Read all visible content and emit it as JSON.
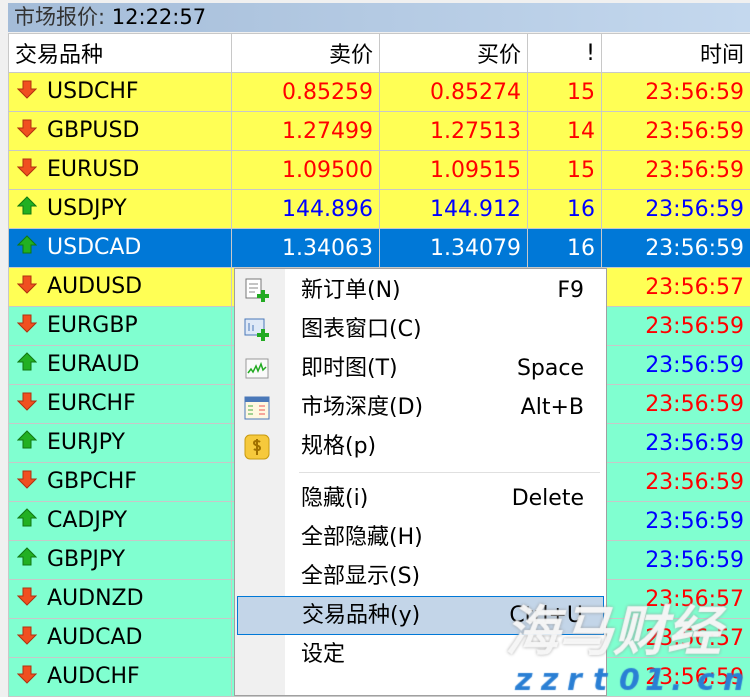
{
  "window": {
    "title_label": "市场报价:",
    "clock": "12:22:57"
  },
  "columns": [
    "交易品种",
    "卖价",
    "买价",
    "!",
    "时间"
  ],
  "colors": {
    "up": "#0000ff",
    "down": "#ff0000",
    "row_yellow": "#ffff55",
    "row_aqua": "#80ffd0",
    "selected": "#0078d7"
  },
  "rows": [
    {
      "symbol": "USDCHF",
      "bid": "0.85259",
      "ask": "0.85274",
      "spread": "15",
      "time": "23:56:59",
      "dir": "down",
      "bg": "yellow"
    },
    {
      "symbol": "GBPUSD",
      "bid": "1.27499",
      "ask": "1.27513",
      "spread": "14",
      "time": "23:56:59",
      "dir": "down",
      "bg": "yellow"
    },
    {
      "symbol": "EURUSD",
      "bid": "1.09500",
      "ask": "1.09515",
      "spread": "15",
      "time": "23:56:59",
      "dir": "down",
      "bg": "yellow"
    },
    {
      "symbol": "USDJPY",
      "bid": "144.896",
      "ask": "144.912",
      "spread": "16",
      "time": "23:56:59",
      "dir": "up",
      "bg": "yellow"
    },
    {
      "symbol": "USDCAD",
      "bid": "1.34063",
      "ask": "1.34079",
      "spread": "16",
      "time": "23:56:59",
      "dir": "up",
      "bg": "sel"
    },
    {
      "symbol": "AUDUSD",
      "time": "23:56:57",
      "dir": "down",
      "bg": "yellow"
    },
    {
      "symbol": "EURGBP",
      "time": "23:56:59",
      "dir": "down",
      "bg": "aqua"
    },
    {
      "symbol": "EURAUD",
      "time": "23:56:59",
      "dir": "up",
      "bg": "aqua"
    },
    {
      "symbol": "EURCHF",
      "time": "23:56:59",
      "dir": "down",
      "bg": "aqua"
    },
    {
      "symbol": "EURJPY",
      "time": "23:56:59",
      "dir": "up",
      "bg": "aqua"
    },
    {
      "symbol": "GBPCHF",
      "time": "23:56:59",
      "dir": "down",
      "bg": "aqua"
    },
    {
      "symbol": "CADJPY",
      "time": "23:56:59",
      "dir": "up",
      "bg": "aqua"
    },
    {
      "symbol": "GBPJPY",
      "time": "23:56:59",
      "dir": "up",
      "bg": "aqua"
    },
    {
      "symbol": "AUDNZD",
      "time": "23:56:57",
      "dir": "down",
      "bg": "aqua"
    },
    {
      "symbol": "AUDCAD",
      "time": "23:56:57",
      "dir": "down",
      "bg": "aqua"
    },
    {
      "symbol": "AUDCHF",
      "time": "23:56:59",
      "dir": "down",
      "bg": "aqua"
    }
  ],
  "context_menu": [
    {
      "label": "新订单(N)",
      "shortcut": "F9",
      "icon": "new-order-icon"
    },
    {
      "label": "图表窗口(C)",
      "shortcut": "",
      "icon": "chart-window-icon"
    },
    {
      "label": "即时图(T)",
      "shortcut": "Space",
      "icon": "tick-chart-icon"
    },
    {
      "label": "市场深度(D)",
      "shortcut": "Alt+B",
      "icon": "market-depth-icon"
    },
    {
      "label": "规格(p)",
      "shortcut": "",
      "icon": "dollar-icon"
    },
    {
      "label": "隐藏(i)",
      "shortcut": "Delete"
    },
    {
      "label": "全部隐藏(H)",
      "shortcut": ""
    },
    {
      "label": "全部显示(S)",
      "shortcut": ""
    },
    {
      "label": "交易品种(y)",
      "shortcut": "Ctrl+U",
      "highlighted": true
    },
    {
      "label": "设定",
      "shortcut": ""
    }
  ],
  "watermark": {
    "text": "海马财经",
    "url": "zzrt01.cn"
  }
}
